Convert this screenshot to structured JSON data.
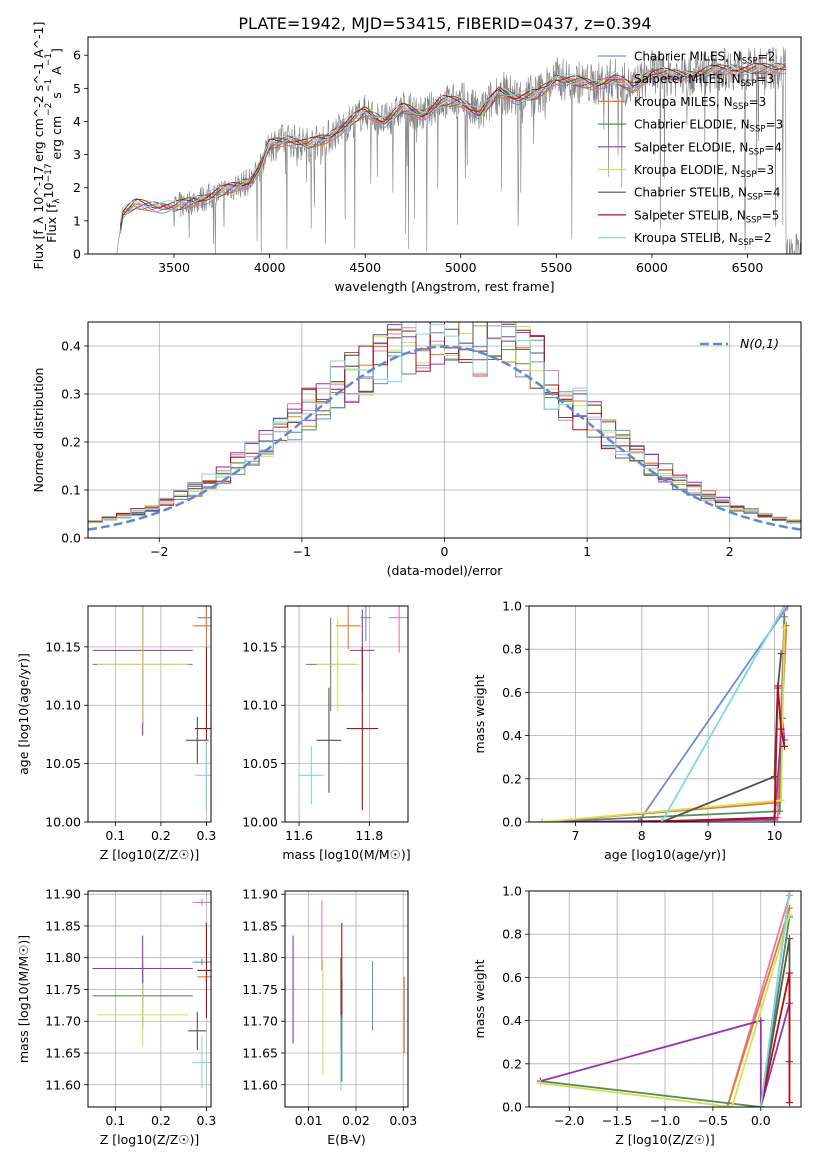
{
  "title": "PLATE=1942, MJD=53415, FIBERID=0437, z=0.394",
  "colors": {
    "Chabrier MILES": "#6a8fd6",
    "Salpeter MILES": "#e879b5",
    "Kroupa MILES": "#e87a2a",
    "Chabrier ELODIE": "#5a8a5a",
    "Salpeter ELODIE": "#9b30b5",
    "Kroupa ELODIE": "#d4e05a",
    "Chabrier STELIB": "#555555",
    "Salpeter STELIB": "#b01010",
    "Kroupa STELIB": "#7fd8e0",
    "data": "#808080",
    "gauss": "#5b8bd6"
  },
  "chart_data": [
    {
      "id": "spectrum",
      "type": "line",
      "xlabel": "wavelength [Angstrom, rest frame]",
      "ylabel": "Flux [f_λ 10^-17 erg cm^-2 s^-1 A^-1]",
      "xlim": [
        3050,
        6780
      ],
      "ylim": [
        0,
        6.55
      ],
      "xticks": [
        3500,
        4000,
        4500,
        5000,
        5500,
        6000,
        6500
      ],
      "yticks": [
        0,
        1,
        2,
        3,
        4,
        5,
        6
      ],
      "grid": false,
      "legend_position": "right",
      "continuum": {
        "x": [
          3200,
          3230,
          3300,
          3400,
          3500,
          3600,
          3700,
          3800,
          3900,
          3950,
          4000,
          4100,
          4200,
          4300,
          4400,
          4500,
          4600,
          4700,
          4800,
          4900,
          5000,
          5100,
          5200,
          5300,
          5400,
          5500,
          5600,
          5700,
          5800,
          5900,
          6000,
          6100,
          6200,
          6300,
          6400,
          6500,
          6600,
          6700
        ],
        "y": [
          0.0,
          1.2,
          1.5,
          1.45,
          1.4,
          1.6,
          1.75,
          2.0,
          2.2,
          2.6,
          3.3,
          3.45,
          3.3,
          3.5,
          3.9,
          4.3,
          4.0,
          4.4,
          4.2,
          4.6,
          4.6,
          4.2,
          4.9,
          4.7,
          4.8,
          5.3,
          5.2,
          5.1,
          5.3,
          5.0,
          5.5,
          5.4,
          5.4,
          5.5,
          5.6,
          5.55,
          5.6,
          5.65
        ]
      },
      "legend": [
        {
          "label": "Chabrier MILES",
          "n_ssp": 2
        },
        {
          "label": "Salpeter MILES",
          "n_ssp": 3
        },
        {
          "label": "Kroupa MILES",
          "n_ssp": 3
        },
        {
          "label": "Chabrier ELODIE",
          "n_ssp": 3
        },
        {
          "label": "Salpeter ELODIE",
          "n_ssp": 4
        },
        {
          "label": "Kroupa ELODIE",
          "n_ssp": 3
        },
        {
          "label": "Chabrier STELIB",
          "n_ssp": 4
        },
        {
          "label": "Salpeter STELIB",
          "n_ssp": 5
        },
        {
          "label": "Kroupa STELIB",
          "n_ssp": 2
        }
      ],
      "legend_sub": "SSP"
    },
    {
      "id": "residuals",
      "type": "line",
      "xlabel": "(data-model)/error",
      "ylabel": "Normed distribution",
      "xlim": [
        -2.5,
        2.5
      ],
      "ylim": [
        0,
        0.45
      ],
      "xticks": [
        -2,
        -1,
        0,
        1,
        2
      ],
      "yticks": [
        0.0,
        0.1,
        0.2,
        0.3,
        0.4
      ],
      "grid": true,
      "legend_position": "top-right",
      "gauss_label": "N(0,1)",
      "bin_width": 0.1,
      "bin_start": -2.5
    },
    {
      "id": "age_vs_Z",
      "type": "scatter",
      "xlabel": "Z [log10(Z/Z☉)]",
      "ylabel": "age  [log10(age/yr)]",
      "xlim": [
        0.04,
        0.31
      ],
      "ylim": [
        10.0,
        10.185
      ],
      "xticks": [
        0.1,
        0.2,
        0.3
      ],
      "yticks": [
        10.0,
        10.05,
        10.1,
        10.15
      ],
      "grid": true,
      "points": [
        {
          "m": "Chabrier MILES",
          "x": 0.3,
          "xerr": 0.02,
          "y": 10.175,
          "yerr": 0.01
        },
        {
          "m": "Salpeter MILES",
          "x": 0.3,
          "xerr": 0.02,
          "y": 10.175,
          "yerr": 0.01
        },
        {
          "m": "Kroupa MILES",
          "x": 0.3,
          "xerr": 0.03,
          "y": 10.168,
          "yerr": 0.02
        },
        {
          "m": "Chabrier ELODIE",
          "x": 0.16,
          "xerr": 0.11,
          "y": 10.135,
          "yerr": 0.05
        },
        {
          "m": "Salpeter ELODIE",
          "x": 0.16,
          "xerr": 0.11,
          "y": 10.147,
          "yerr": 0.073
        },
        {
          "m": "Kroupa ELODIE",
          "x": 0.16,
          "xerr": 0.1,
          "y": 10.135,
          "yerr": 0.05
        },
        {
          "m": "Chabrier STELIB",
          "x": 0.28,
          "xerr": 0.025,
          "y": 10.07,
          "yerr": 0.02
        },
        {
          "m": "Salpeter STELIB",
          "x": 0.3,
          "xerr": 0.025,
          "y": 10.08,
          "yerr": 0.07
        },
        {
          "m": "Kroupa STELIB",
          "x": 0.3,
          "xerr": 0.025,
          "y": 10.04,
          "yerr": 0.03
        }
      ]
    },
    {
      "id": "age_vs_mass",
      "type": "scatter",
      "xlabel": "mass [log10(M/M☉)]",
      "ylabel": "",
      "xlim": [
        11.56,
        11.91
      ],
      "ylim": [
        10.0,
        10.185
      ],
      "xticks": [
        11.6,
        11.8
      ],
      "yticks": [
        10.0,
        10.05,
        10.1,
        10.15
      ],
      "grid": true,
      "points": [
        {
          "m": "Chabrier MILES",
          "x": 11.79,
          "xerr": 0.015,
          "y": 10.175,
          "yerr": 0.02
        },
        {
          "m": "Salpeter MILES",
          "x": 11.885,
          "xerr": 0.03,
          "y": 10.175,
          "yerr": 0.03
        },
        {
          "m": "Kroupa MILES",
          "x": 11.74,
          "xerr": 0.035,
          "y": 10.168,
          "yerr": 0.02
        },
        {
          "m": "Chabrier ELODIE",
          "x": 11.69,
          "xerr": 0.07,
          "y": 10.135,
          "yerr": 0.04
        },
        {
          "m": "Salpeter ELODIE",
          "x": 11.78,
          "xerr": 0.035,
          "y": 10.147,
          "yerr": 0.035
        },
        {
          "m": "Kroupa ELODIE",
          "x": 11.71,
          "xerr": 0.06,
          "y": 10.135,
          "yerr": 0.04
        },
        {
          "m": "Chabrier STELIB",
          "x": 11.685,
          "xerr": 0.035,
          "y": 10.07,
          "yerr": 0.045
        },
        {
          "m": "Salpeter STELIB",
          "x": 11.78,
          "xerr": 0.045,
          "y": 10.08,
          "yerr": 0.07
        },
        {
          "m": "Kroupa STELIB",
          "x": 11.635,
          "xerr": 0.035,
          "y": 10.04,
          "yerr": 0.025
        }
      ]
    },
    {
      "id": "weight_vs_age",
      "type": "line",
      "xlabel": "age  [log10(age/yr)]",
      "ylabel": "mass weight",
      "xlim": [
        6.3,
        10.4
      ],
      "ylim": [
        0,
        1.0
      ],
      "xticks": [
        7,
        8,
        9,
        10
      ],
      "yticks": [
        0.0,
        0.2,
        0.4,
        0.6,
        0.8,
        1.0
      ],
      "grid": true,
      "series": [
        {
          "m": "Chabrier MILES",
          "x": [
            7.95,
            10.2
          ],
          "y": [
            0.0,
            1.0
          ]
        },
        {
          "m": "Salpeter MILES",
          "x": [
            8.0,
            10.05,
            10.15
          ],
          "y": [
            0.0,
            0.02,
            0.98
          ]
        },
        {
          "m": "Kroupa MILES",
          "x": [
            6.5,
            10.05,
            10.18
          ],
          "y": [
            0.0,
            0.09,
            0.91
          ]
        },
        {
          "m": "Chabrier ELODIE",
          "x": [
            6.5,
            10.08,
            10.15
          ],
          "y": [
            0.0,
            0.05,
            0.95
          ]
        },
        {
          "m": "Salpeter ELODIE",
          "x": [
            6.5,
            10.0,
            10.12,
            10.15
          ],
          "y": [
            0.0,
            0.01,
            0.48,
            0.38
          ]
        },
        {
          "m": "Kroupa ELODIE",
          "x": [
            6.5,
            10.1,
            10.15
          ],
          "y": [
            0.0,
            0.1,
            0.9
          ]
        },
        {
          "m": "Chabrier STELIB",
          "x": [
            8.3,
            10.0,
            10.05,
            10.1
          ],
          "y": [
            0.0,
            0.21,
            0.62,
            0.78
          ]
        },
        {
          "m": "Salpeter STELIB",
          "x": [
            8.0,
            10.0,
            10.05,
            10.1,
            10.15
          ],
          "y": [
            0.0,
            0.02,
            0.63,
            0.43,
            0.35
          ]
        },
        {
          "m": "Kroupa STELIB",
          "x": [
            8.3,
            10.15
          ],
          "y": [
            0.0,
            1.0
          ]
        }
      ]
    },
    {
      "id": "mass_vs_Z",
      "type": "scatter",
      "xlabel": "Z [log10(Z/Z☉)]",
      "ylabel": "mass [log10(M/M☉)]",
      "xlim": [
        0.04,
        0.31
      ],
      "ylim": [
        11.565,
        11.905
      ],
      "xticks": [
        0.1,
        0.2,
        0.3
      ],
      "yticks": [
        11.6,
        11.65,
        11.7,
        11.75,
        11.8,
        11.85,
        11.9
      ],
      "grid": true,
      "points": [
        {
          "m": "Chabrier MILES",
          "x": 0.29,
          "xerr": 0.02,
          "y": 11.793,
          "yerr": 0.005
        },
        {
          "m": "Salpeter MILES",
          "x": 0.29,
          "xerr": 0.02,
          "y": 11.887,
          "yerr": 0.005
        },
        {
          "m": "Kroupa MILES",
          "x": 0.3,
          "xerr": 0.02,
          "y": 11.77,
          "yerr": 0.01
        },
        {
          "m": "Chabrier ELODIE",
          "x": 0.16,
          "xerr": 0.11,
          "y": 11.74,
          "yerr": 0.05
        },
        {
          "m": "Salpeter ELODIE",
          "x": 0.16,
          "xerr": 0.11,
          "y": 11.783,
          "yerr": 0.052
        },
        {
          "m": "Kroupa ELODIE",
          "x": 0.16,
          "xerr": 0.1,
          "y": 11.71,
          "yerr": 0.05
        },
        {
          "m": "Chabrier STELIB",
          "x": 0.28,
          "xerr": 0.02,
          "y": 11.685,
          "yerr": 0.03
        },
        {
          "m": "Salpeter STELIB",
          "x": 0.3,
          "xerr": 0.02,
          "y": 11.78,
          "yerr": 0.075
        },
        {
          "m": "Kroupa STELIB",
          "x": 0.29,
          "xerr": 0.02,
          "y": 11.635,
          "yerr": 0.04
        }
      ]
    },
    {
      "id": "mass_vs_ebv",
      "type": "scatter",
      "xlabel": "E(B-V)",
      "ylabel": "",
      "xlim": [
        0.005,
        0.031
      ],
      "ylim": [
        11.565,
        11.905
      ],
      "xticks": [
        0.01,
        0.02,
        0.03
      ],
      "yticks": [
        11.6,
        11.65,
        11.7,
        11.75,
        11.8,
        11.85,
        11.9
      ],
      "grid": true,
      "points": [
        {
          "m": "Chabrier MILES",
          "x": 0.0235,
          "xerr": 0.0,
          "y": 11.74,
          "yerr": 0.055
        },
        {
          "m": "Salpeter MILES",
          "x": 0.0128,
          "xerr": 0.0,
          "y": 11.835,
          "yerr": 0.055
        },
        {
          "m": "Kroupa MILES",
          "x": 0.0302,
          "xerr": 0.0,
          "y": 11.71,
          "yerr": 0.06
        },
        {
          "m": "Chabrier ELODIE",
          "x": 0.0168,
          "xerr": 0.0,
          "y": 11.73,
          "yerr": 0.07
        },
        {
          "m": "Salpeter ELODIE",
          "x": 0.0067,
          "xerr": 0.0,
          "y": 11.75,
          "yerr": 0.085
        },
        {
          "m": "Kroupa ELODIE",
          "x": 0.013,
          "xerr": 0.0,
          "y": 11.705,
          "yerr": 0.09
        },
        {
          "m": "Chabrier STELIB",
          "x": 0.017,
          "xerr": 0.0,
          "y": 11.685,
          "yerr": 0.08
        },
        {
          "m": "Salpeter STELIB",
          "x": 0.017,
          "xerr": 0.0,
          "y": 11.78,
          "yerr": 0.075
        },
        {
          "m": "Kroupa STELIB",
          "x": 0.0168,
          "xerr": 0.0,
          "y": 11.65,
          "yerr": 0.06
        }
      ]
    },
    {
      "id": "weight_vs_Z",
      "type": "line",
      "xlabel": "Z [log10(Z/Z☉)]",
      "ylabel": "mass weight",
      "xlim": [
        -2.42,
        0.42
      ],
      "ylim": [
        0,
        1.0
      ],
      "xticks": [
        -2.0,
        -1.5,
        -1.0,
        -0.5,
        0.0
      ],
      "yticks": [
        0.0,
        0.2,
        0.4,
        0.6,
        0.8,
        1.0
      ],
      "grid": true,
      "series": [
        {
          "m": "Chabrier MILES",
          "x": [
            0.0,
            0.3
          ],
          "y": [
            0.0,
            1.0
          ]
        },
        {
          "m": "Salpeter MILES",
          "x": [
            -0.35,
            0.3
          ],
          "y": [
            0.0,
            0.98
          ]
        },
        {
          "m": "Kroupa MILES",
          "x": [
            -0.35,
            0.3
          ],
          "y": [
            0.0,
            0.92
          ]
        },
        {
          "m": "Chabrier ELODIE",
          "x": [
            -2.3,
            0.0,
            0.3
          ],
          "y": [
            0.12,
            0.0,
            0.88
          ]
        },
        {
          "m": "Salpeter ELODIE",
          "x": [
            -2.3,
            0.0,
            0.0,
            0.3
          ],
          "y": [
            0.12,
            0.4,
            0.0,
            0.48
          ]
        },
        {
          "m": "Kroupa ELODIE",
          "x": [
            -2.3,
            -0.3,
            0.3
          ],
          "y": [
            0.11,
            0.0,
            0.89
          ]
        },
        {
          "m": "Chabrier STELIB",
          "x": [
            0.0,
            0.3,
            0.3
          ],
          "y": [
            0.0,
            0.78,
            0.21
          ]
        },
        {
          "m": "Salpeter STELIB",
          "x": [
            0.0,
            0.3,
            0.3
          ],
          "y": [
            0.0,
            0.62,
            0.02
          ]
        },
        {
          "m": "Kroupa STELIB",
          "x": [
            0.0,
            0.3
          ],
          "y": [
            0.0,
            1.0
          ]
        }
      ]
    }
  ]
}
